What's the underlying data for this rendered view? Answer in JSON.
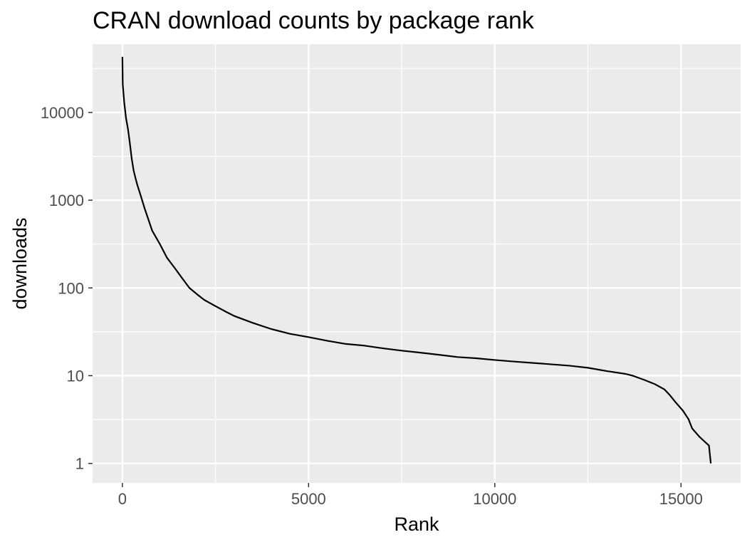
{
  "chart_data": {
    "type": "line",
    "title": "CRAN download counts by package rank",
    "xlabel": "Rank",
    "ylabel": "downloads",
    "xlim": [
      -800,
      16600
    ],
    "ylim": [
      0.6,
      60000
    ],
    "y_scale": "log10",
    "grid": true,
    "background": "#ebebeb",
    "line_color": "#000000",
    "x_ticks": [
      0,
      5000,
      10000,
      15000
    ],
    "x_tick_labels": [
      "0",
      "5000",
      "10000",
      "15000"
    ],
    "x_minor_ticks": [
      2500,
      7500,
      12500
    ],
    "y_ticks": [
      1,
      10,
      100,
      1000,
      10000
    ],
    "y_tick_labels": [
      "1",
      "10",
      "100",
      "1000",
      "10000"
    ],
    "y_minor_ticks": [
      3.16,
      31.6,
      316,
      3162,
      31623
    ],
    "series": [
      {
        "points": [
          [
            1,
            43000
          ],
          [
            10,
            21000
          ],
          [
            50,
            13000
          ],
          [
            100,
            8500
          ],
          [
            150,
            6500
          ],
          [
            200,
            4500
          ],
          [
            250,
            3000
          ],
          [
            300,
            2200
          ],
          [
            350,
            1800
          ],
          [
            400,
            1500
          ],
          [
            500,
            1100
          ],
          [
            600,
            800
          ],
          [
            700,
            600
          ],
          [
            800,
            450
          ],
          [
            1000,
            320
          ],
          [
            1200,
            220
          ],
          [
            1400,
            170
          ],
          [
            1600,
            130
          ],
          [
            1800,
            100
          ],
          [
            2000,
            85
          ],
          [
            2200,
            73
          ],
          [
            2500,
            62
          ],
          [
            2800,
            53
          ],
          [
            3000,
            48
          ],
          [
            3500,
            40
          ],
          [
            4000,
            34
          ],
          [
            4500,
            30
          ],
          [
            5000,
            27.5
          ],
          [
            5500,
            25
          ],
          [
            6000,
            23
          ],
          [
            6500,
            22
          ],
          [
            7000,
            20.5
          ],
          [
            7500,
            19.3
          ],
          [
            8000,
            18.3
          ],
          [
            8500,
            17.3
          ],
          [
            9000,
            16.3
          ],
          [
            9500,
            15.8
          ],
          [
            10000,
            15.1
          ],
          [
            10500,
            14.5
          ],
          [
            11000,
            14
          ],
          [
            11500,
            13.5
          ],
          [
            12000,
            13
          ],
          [
            12500,
            12.3
          ],
          [
            13000,
            11.3
          ],
          [
            13500,
            10.5
          ],
          [
            13700,
            10
          ],
          [
            14000,
            9
          ],
          [
            14300,
            8
          ],
          [
            14550,
            7
          ],
          [
            14700,
            6
          ],
          [
            14850,
            5
          ],
          [
            15050,
            4
          ],
          [
            15200,
            3.2
          ],
          [
            15300,
            2.5
          ],
          [
            15500,
            2
          ],
          [
            15750,
            1.6
          ],
          [
            15800,
            1
          ]
        ]
      }
    ]
  }
}
